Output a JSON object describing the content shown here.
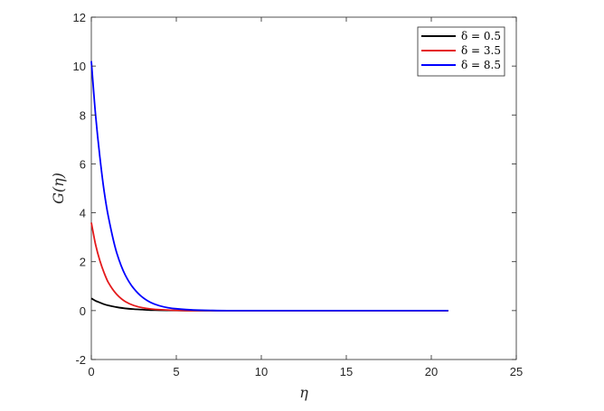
{
  "chart_data": {
    "type": "line",
    "xlabel": "η",
    "ylabel": "G(η)",
    "xlim": [
      0,
      25
    ],
    "ylim": [
      -2,
      12
    ],
    "xticks": [
      0,
      5,
      10,
      15,
      20,
      25
    ],
    "yticks": [
      -2,
      0,
      2,
      4,
      6,
      8,
      10,
      12
    ],
    "grid": false,
    "legend_position": "top-right",
    "series": [
      {
        "name": "δ = 0.5",
        "color": "#000000",
        "x": [
          0,
          0.25,
          0.5,
          0.75,
          1,
          1.5,
          2,
          2.5,
          3,
          3.5,
          4,
          5,
          6,
          8,
          10,
          15,
          21
        ],
        "y": [
          0.5,
          0.4,
          0.33,
          0.26,
          0.21,
          0.14,
          0.09,
          0.06,
          0.04,
          0.02,
          0.015,
          0.005,
          0,
          0,
          0,
          0,
          0
        ]
      },
      {
        "name": "δ = 3.5",
        "color": "#e41a1c",
        "x": [
          0,
          0.25,
          0.5,
          0.75,
          1,
          1.5,
          2,
          2.5,
          3,
          3.5,
          4,
          5,
          6,
          8,
          10,
          15,
          21
        ],
        "y": [
          3.6,
          2.7,
          2.05,
          1.55,
          1.15,
          0.66,
          0.37,
          0.21,
          0.12,
          0.07,
          0.04,
          0.01,
          0,
          0,
          0,
          0,
          0
        ]
      },
      {
        "name": "δ = 8.5",
        "color": "#0000ff",
        "x": [
          0,
          0.25,
          0.5,
          0.75,
          1,
          1.5,
          2,
          2.5,
          3,
          3.5,
          4,
          4.5,
          5,
          6,
          7,
          8,
          10,
          15,
          21
        ],
        "y": [
          10.2,
          8.0,
          6.3,
          4.9,
          3.85,
          2.35,
          1.45,
          0.9,
          0.55,
          0.33,
          0.2,
          0.12,
          0.075,
          0.025,
          0.008,
          0,
          0,
          0,
          0
        ]
      }
    ]
  }
}
